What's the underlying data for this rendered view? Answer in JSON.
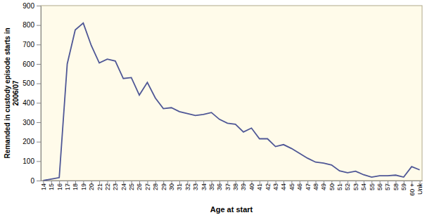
{
  "chart_data": {
    "type": "line",
    "x_label": "Age at start",
    "y_label": "Remanded in custody episode starts in 2006/07",
    "categories": [
      "14",
      "15",
      "16",
      "17",
      "18",
      "19",
      "20",
      "21",
      "22",
      "23",
      "24",
      "25",
      "26",
      "27",
      "28",
      "29",
      "30",
      "31",
      "32",
      "33",
      "34",
      "35",
      "36",
      "37",
      "38",
      "39",
      "40",
      "41",
      "42",
      "43",
      "44",
      "45",
      "46",
      "47",
      "48",
      "49",
      "50",
      "51",
      "52",
      "53",
      "54",
      "55",
      "56",
      "57",
      "58",
      "59",
      "60 +",
      "Unk"
    ],
    "values": [
      0,
      8,
      15,
      600,
      775,
      810,
      695,
      605,
      625,
      615,
      525,
      530,
      440,
      505,
      425,
      370,
      375,
      355,
      345,
      335,
      340,
      350,
      315,
      295,
      290,
      250,
      270,
      215,
      215,
      175,
      185,
      165,
      140,
      115,
      95,
      90,
      80,
      50,
      40,
      48,
      30,
      18,
      25,
      25,
      28,
      18,
      72,
      55
    ],
    "color": "#4f5796",
    "ylim": [
      0,
      900
    ],
    "yticks": [
      0,
      100,
      200,
      300,
      400,
      500,
      600,
      700,
      800,
      900
    ],
    "grid": false
  }
}
